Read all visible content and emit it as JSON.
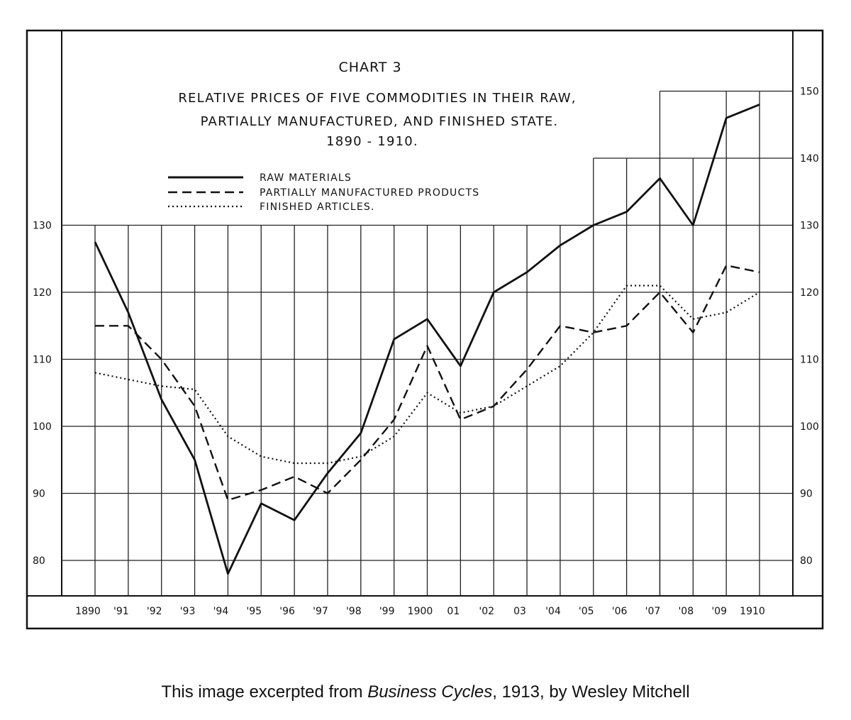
{
  "chart_data": {
    "type": "line",
    "title": "CHART 3",
    "subtitle_lines": [
      "RELATIVE PRICES OF FIVE COMMODITIES IN THEIR RAW,",
      "PARTIALLY MANUFACTURED, AND FINISHED STATE.",
      "1890 - 1910."
    ],
    "x_tick_labels": [
      "1890",
      "'91",
      "'92",
      "'93",
      "'94",
      "'95",
      "'96",
      "'97",
      "'98",
      "'99",
      "1900",
      "01",
      "'02",
      "03",
      "'04",
      "'05",
      "'06",
      "'07",
      "'08",
      "'09",
      "1910"
    ],
    "x": [
      1890,
      1891,
      1892,
      1893,
      1894,
      1895,
      1896,
      1897,
      1898,
      1899,
      1900,
      1901,
      1902,
      1903,
      1904,
      1905,
      1906,
      1907,
      1908,
      1909,
      1910
    ],
    "left_y_ticks": [
      "80",
      "90",
      "100",
      "110",
      "120",
      "130"
    ],
    "right_y_ticks": [
      "80",
      "90",
      "100",
      "110",
      "120",
      "130",
      "140",
      "150"
    ],
    "ylim": [
      75,
      155
    ],
    "grid": true,
    "legend_position": "top-left",
    "series": [
      {
        "name": "RAW MATERIALS",
        "style": "solid",
        "values": [
          127.5,
          117,
          104,
          95,
          78,
          88.5,
          86,
          93,
          99,
          113,
          116,
          109,
          120,
          123,
          127,
          130,
          132,
          137,
          130,
          146,
          148
        ]
      },
      {
        "name": "PARTIALLY MANUFACTURED PRODUCTS",
        "style": "dashed",
        "values": [
          115,
          115,
          110,
          103,
          89,
          90.5,
          92.5,
          90,
          95,
          101,
          112,
          101,
          103,
          108.5,
          115,
          114,
          115,
          120,
          114,
          124,
          123
        ]
      },
      {
        "name": "FINISHED ARTICLES.",
        "style": "dotted",
        "values": [
          108,
          107,
          106,
          105.5,
          98.5,
          95.5,
          94.5,
          94.5,
          95.5,
          98.5,
          105,
          102,
          103,
          106,
          109,
          114,
          121,
          121,
          116,
          117,
          120
        ]
      }
    ]
  },
  "caption": {
    "prefix": "This image excerpted from ",
    "book": "Business Cycles",
    "suffix": ", 1913, by Wesley Mitchell"
  }
}
